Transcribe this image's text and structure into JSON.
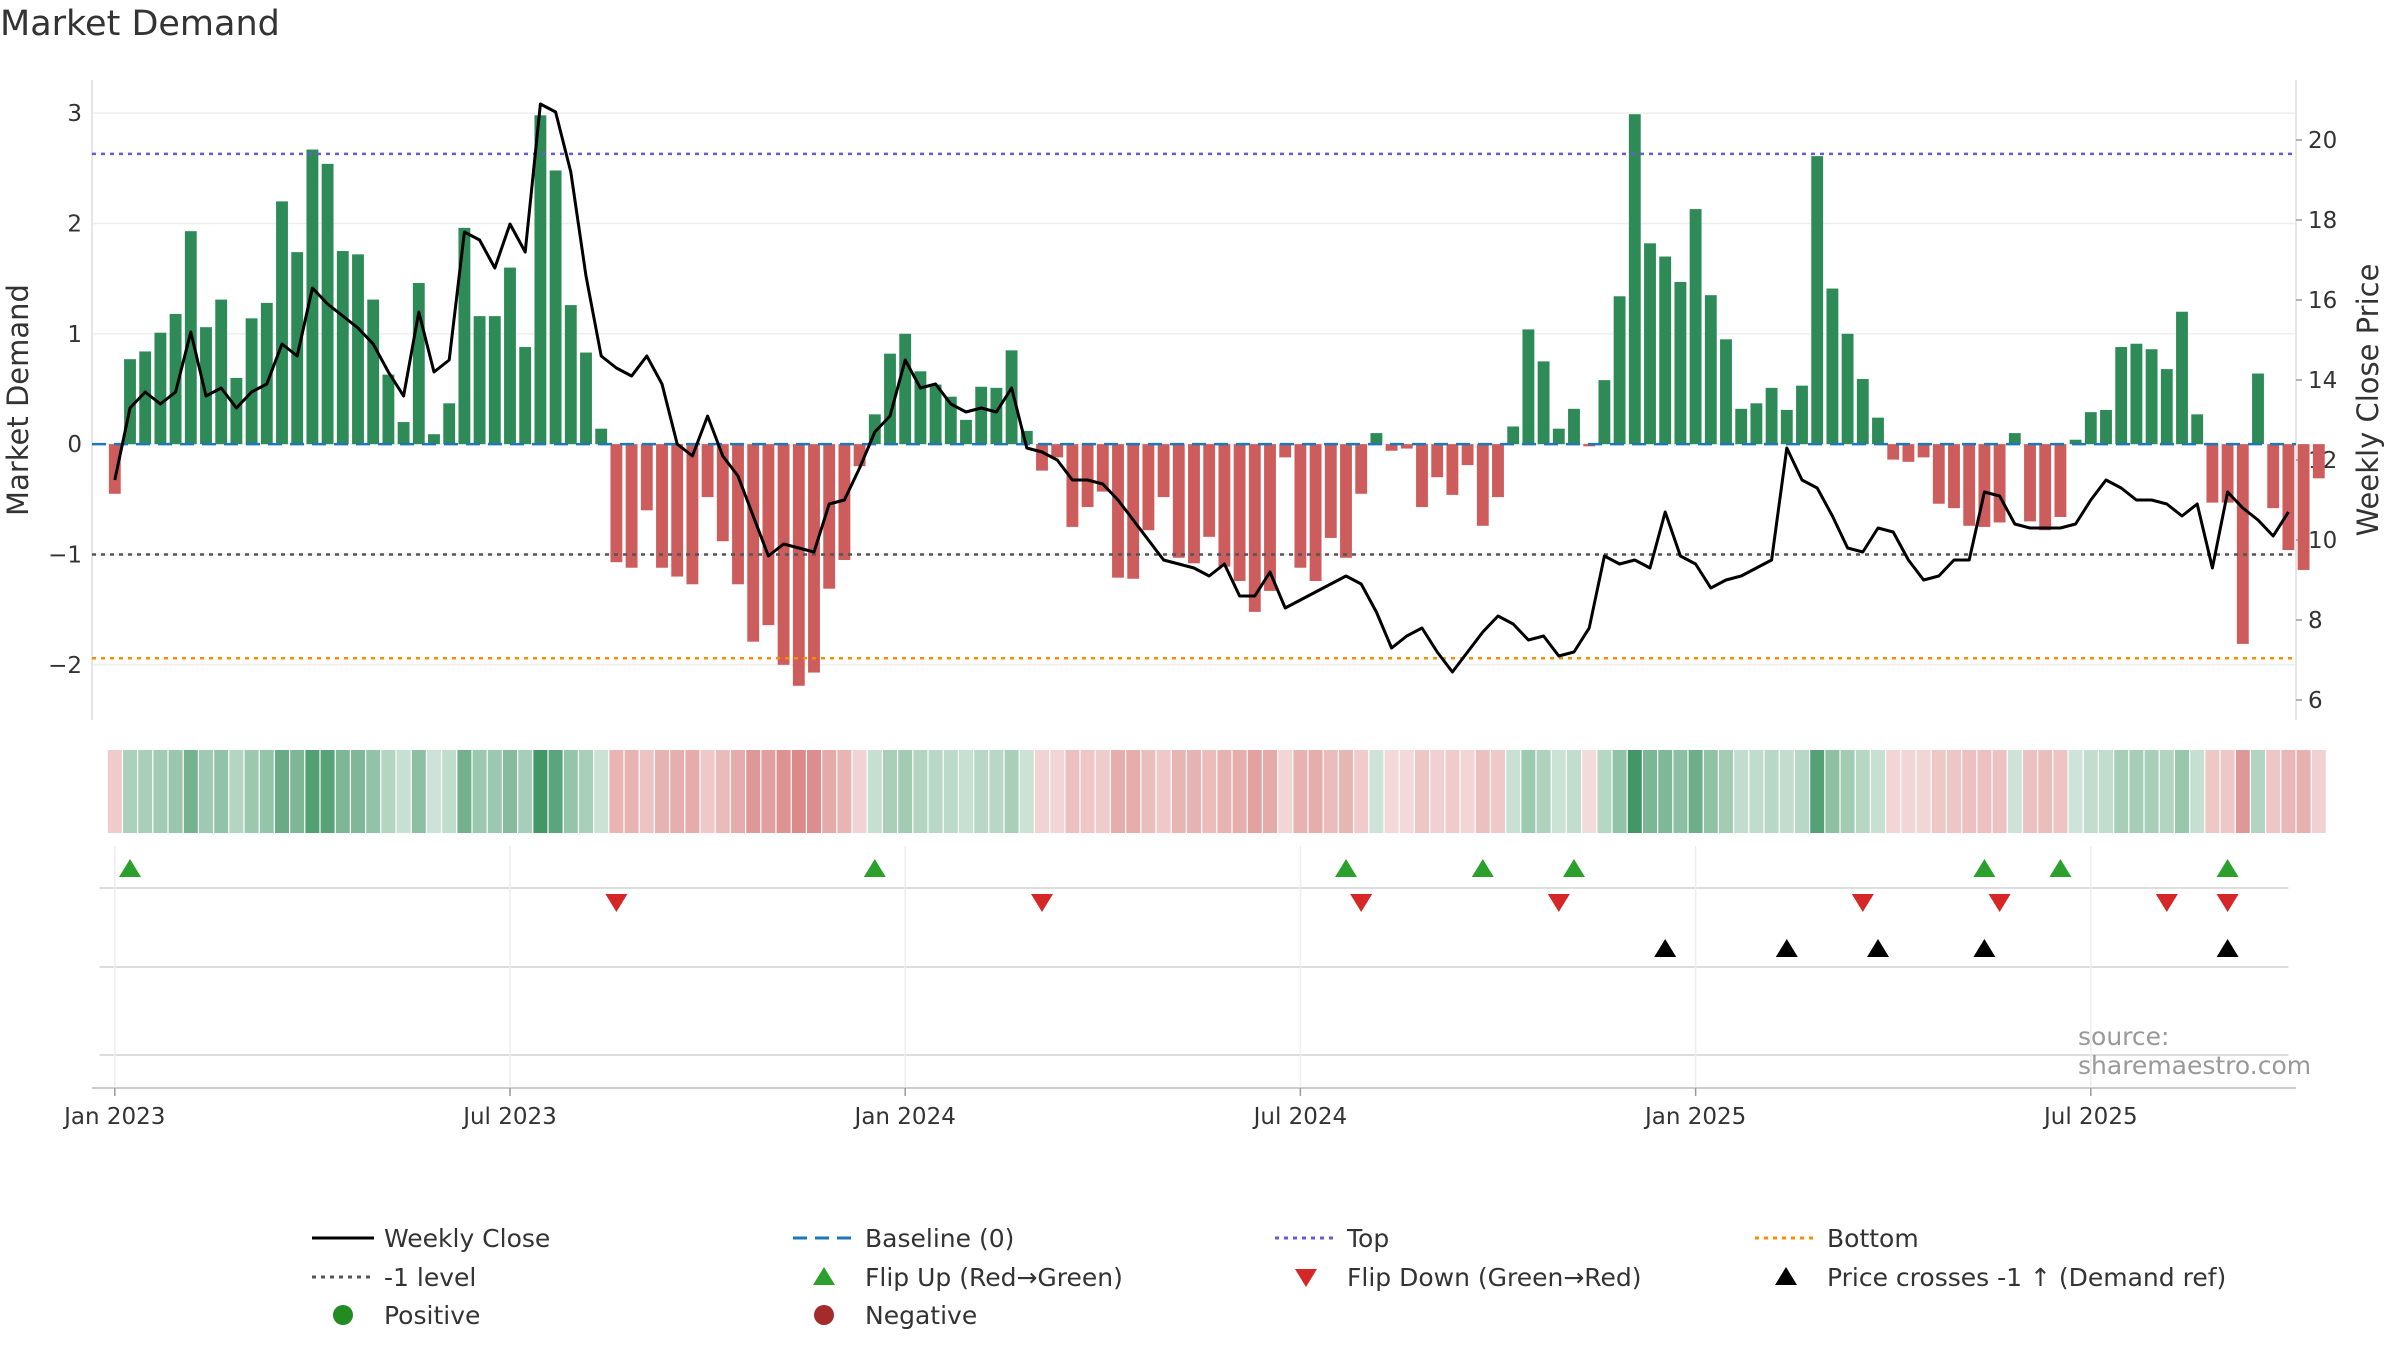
{
  "title": "Market Demand",
  "source": "source: sharemaestro.com",
  "colors": {
    "green": "#2e8b57",
    "red": "#cd5c5c",
    "price": "#000000",
    "baseline": "#1f77b4",
    "top": "#6a5acd",
    "minus1": "#555555",
    "bottom": "#ff8c00",
    "flipUp": "#2ca02c",
    "flipDown": "#d62728",
    "cross": "#000000",
    "posDot": "#228b22",
    "negDot": "#a52a2a"
  },
  "chart_data": {
    "type": "bar",
    "title": "Market Demand",
    "ylabel": "Market Demand",
    "y2label": "Weekly Close Price",
    "ylim": [
      -2.5,
      3.3
    ],
    "y2lim": [
      5.5,
      21.5
    ],
    "yticks": [
      3,
      2,
      1,
      0,
      -1,
      -2
    ],
    "ytick_labels": [
      "3",
      "2",
      "1",
      "0",
      "−1",
      "−2"
    ],
    "y2ticks": [
      20,
      18,
      16,
      14,
      12,
      10,
      8,
      6
    ],
    "y2tick_labels": [
      "20",
      "18",
      "16",
      "14",
      "12",
      "10",
      "8",
      "6"
    ],
    "xlim": [
      -1.5,
      143.5
    ],
    "xticks": [
      0,
      26,
      52,
      78,
      104,
      130
    ],
    "xtick_labels": [
      "Jan 2023",
      "Jul 2023",
      "Jan 2024",
      "Jul 2024",
      "Jan 2025",
      "Jul 2025"
    ],
    "levels": {
      "top": 2.63,
      "minus_one": -1.0,
      "bottom": -1.94,
      "baseline": 0
    },
    "demand": [
      -0.45,
      0.77,
      0.84,
      1.01,
      1.18,
      1.93,
      1.06,
      1.31,
      0.6,
      1.14,
      1.28,
      2.2,
      1.74,
      2.67,
      2.54,
      1.75,
      1.72,
      1.31,
      0.63,
      0.2,
      1.46,
      0.09,
      0.37,
      1.96,
      1.16,
      1.16,
      1.6,
      0.88,
      2.98,
      2.48,
      1.26,
      0.83,
      0.14,
      -1.07,
      -1.12,
      -0.6,
      -1.12,
      -1.2,
      -1.27,
      -0.48,
      -0.88,
      -1.27,
      -1.79,
      -1.64,
      -2.0,
      -2.19,
      -2.07,
      -1.31,
      -1.05,
      -0.2,
      0.27,
      0.82,
      1.0,
      0.66,
      0.54,
      0.43,
      0.22,
      0.52,
      0.51,
      0.85,
      0.12,
      -0.24,
      -0.12,
      -0.75,
      -0.57,
      -0.43,
      -1.21,
      -1.22,
      -0.78,
      -0.48,
      -1.03,
      -1.08,
      -0.84,
      -1.11,
      -1.24,
      -1.52,
      -1.33,
      -0.12,
      -1.12,
      -1.24,
      -0.85,
      -1.03,
      -0.45,
      0.1,
      -0.06,
      -0.04,
      -0.57,
      -0.3,
      -0.46,
      -0.19,
      -0.74,
      -0.48,
      0.16,
      1.04,
      0.75,
      0.14,
      0.32,
      -0.02,
      0.58,
      1.34,
      2.99,
      1.82,
      1.7,
      1.47,
      2.13,
      1.35,
      0.95,
      0.32,
      0.37,
      0.51,
      0.31,
      0.53,
      2.61,
      1.41,
      1.0,
      0.59,
      0.24,
      -0.14,
      -0.16,
      -0.12,
      -0.54,
      -0.58,
      -0.74,
      -0.75,
      -0.71,
      0.1,
      -0.7,
      -0.78,
      -0.66,
      0.04,
      0.29,
      0.31,
      0.88,
      0.91,
      0.86,
      0.68,
      1.2,
      0.27,
      -0.53,
      -0.53,
      -1.81,
      0.64,
      -0.58,
      -0.96,
      -1.14,
      -0.31
    ],
    "price": [
      11.5,
      13.3,
      13.7,
      13.4,
      13.7,
      15.2,
      13.6,
      13.8,
      13.3,
      13.7,
      13.9,
      14.9,
      14.6,
      16.3,
      15.9,
      15.6,
      15.3,
      14.9,
      14.2,
      13.6,
      15.7,
      14.2,
      14.5,
      17.7,
      17.5,
      16.8,
      17.9,
      17.2,
      20.9,
      20.7,
      19.2,
      16.6,
      14.6,
      14.3,
      14.1,
      14.6,
      13.9,
      12.4,
      12.1,
      13.1,
      12.1,
      11.6,
      10.6,
      9.6,
      9.9,
      9.8,
      9.7,
      10.9,
      11.0,
      11.8,
      12.7,
      13.1,
      14.5,
      13.8,
      13.9,
      13.4,
      13.2,
      13.3,
      13.2,
      13.8,
      12.3,
      12.2,
      12.0,
      11.5,
      11.5,
      11.4,
      11.0,
      10.5,
      10.0,
      9.5,
      9.4,
      9.3,
      9.1,
      9.4,
      8.6,
      8.6,
      9.2,
      8.3,
      8.5,
      8.7,
      8.9,
      9.1,
      8.9,
      8.2,
      7.3,
      7.6,
      7.8,
      7.2,
      6.7,
      7.2,
      7.7,
      8.1,
      7.9,
      7.5,
      7.6,
      7.1,
      7.2,
      7.8,
      9.6,
      9.4,
      9.5,
      9.3,
      10.7,
      9.6,
      9.4,
      8.8,
      9.0,
      9.1,
      9.3,
      9.5,
      12.3,
      11.5,
      11.3,
      10.6,
      9.8,
      9.7,
      10.3,
      10.2,
      9.5,
      9.0,
      9.1,
      9.5,
      9.5,
      11.2,
      11.1,
      10.4,
      10.3,
      10.3,
      10.3,
      10.4,
      11.0,
      11.5,
      11.3,
      11.0,
      11.0,
      10.9,
      10.6,
      10.9,
      9.3,
      11.2,
      10.8,
      10.5,
      10.1,
      10.7
    ],
    "heat_strip": "color of each weekly cell follows demand sign and magnitude",
    "flip_up_weeks": [
      1,
      50,
      81,
      90,
      96,
      123,
      128,
      139
    ],
    "flip_down_weeks": [
      33,
      61,
      82,
      95,
      115,
      124,
      135,
      139
    ],
    "price_cross_weeks": [
      102,
      110,
      116,
      123,
      139
    ],
    "legend": [
      {
        "label": "Weekly Close",
        "marker": "solid-line"
      },
      {
        "label": "Baseline (0)",
        "marker": "dashed-line"
      },
      {
        "label": "Top",
        "marker": "dotted-line"
      },
      {
        "label": "Bottom",
        "marker": "dotted-line"
      },
      {
        "label": "-1 level",
        "marker": "dotted-line"
      },
      {
        "label": "Flip Up (Red→Green)",
        "marker": "triangle-up"
      },
      {
        "label": "Flip Down (Green→Red)",
        "marker": "triangle-down"
      },
      {
        "label": "Price crosses -1 ↑ (Demand ref)",
        "marker": "triangle-up"
      },
      {
        "label": "Positive",
        "marker": "dot"
      },
      {
        "label": "Negative",
        "marker": "dot"
      }
    ],
    "legend_position": "bottom"
  }
}
